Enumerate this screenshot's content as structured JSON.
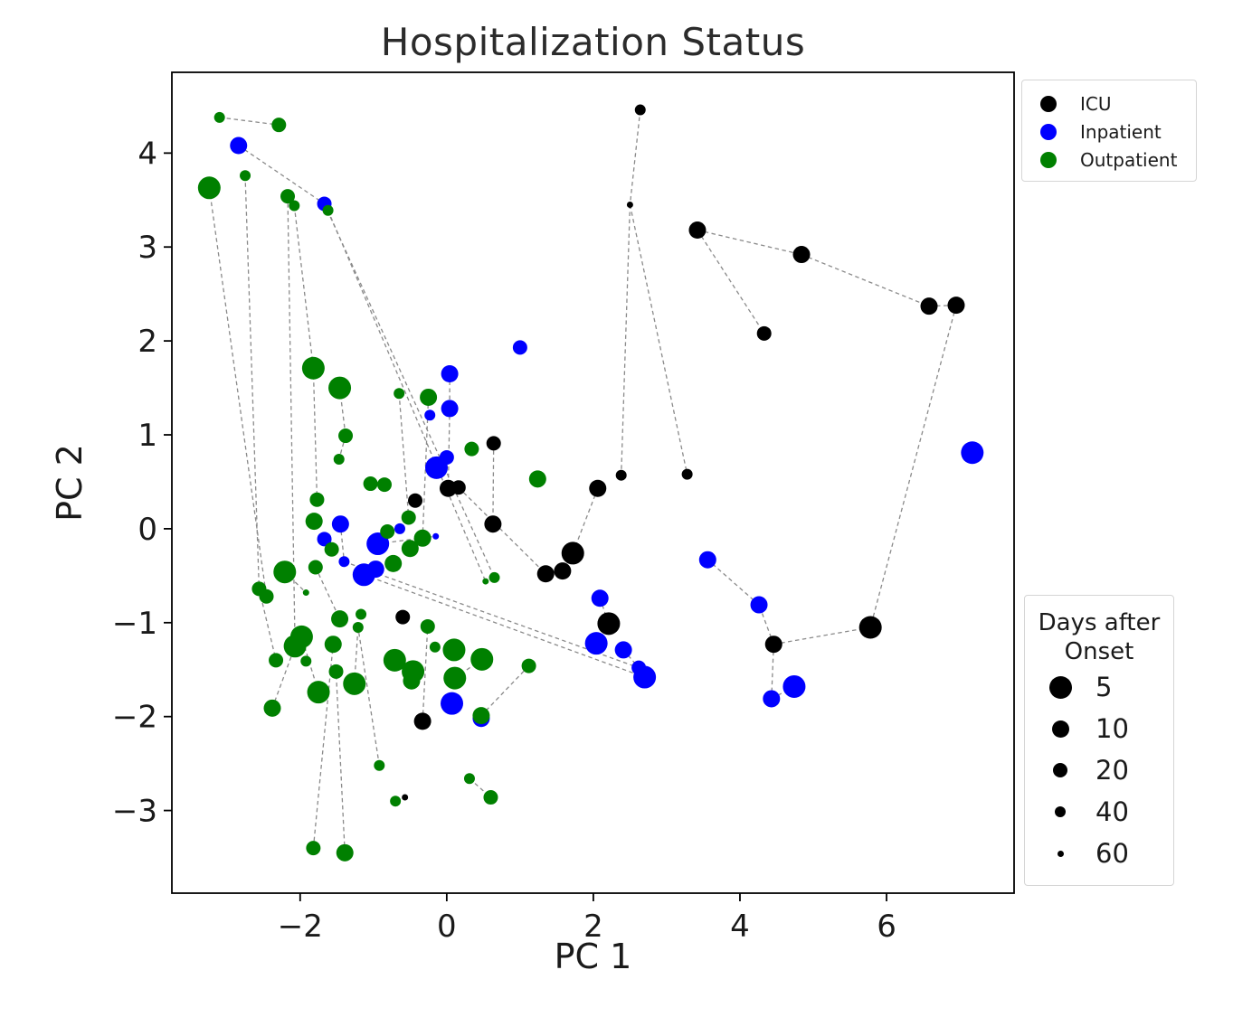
{
  "title": "Hospitalization Status",
  "axes": {
    "xlabel": "PC 1",
    "ylabel": "PC 2",
    "xticks": [
      -2,
      0,
      2,
      4,
      6
    ],
    "yticks": [
      4,
      3,
      2,
      1,
      0,
      -1,
      -2,
      -3
    ]
  },
  "legend": {
    "items": [
      {
        "label": "ICU",
        "color": "#000000"
      },
      {
        "label": "Inpatient",
        "color": "#0000ff"
      },
      {
        "label": "Outpatient",
        "color": "#008000"
      }
    ]
  },
  "size_legend": {
    "title_line1": "Days after",
    "title_line2": "Onset",
    "entries": [
      {
        "label": "5",
        "days": 5
      },
      {
        "label": "10",
        "days": 10
      },
      {
        "label": "20",
        "days": 20
      },
      {
        "label": "40",
        "days": 40
      },
      {
        "label": "60",
        "days": 60
      }
    ]
  },
  "chart_data": {
    "type": "scatter",
    "title": "Hospitalization Status",
    "xlabel": "PC 1",
    "ylabel": "PC 2",
    "xlim": [
      -3.75,
      7.74
    ],
    "ylim": [
      -3.88,
      4.86
    ],
    "grid": false,
    "legend_position": "upper right (outside-style box)",
    "size_encoding": "Days after Onset: larger marker = fewer days (5,10,20,40,60)",
    "series": [
      {
        "name": "ICU",
        "color": "#000000",
        "points": [
          [
            2.64,
            4.46,
            40
          ],
          [
            2.5,
            3.45,
            60
          ],
          [
            3.42,
            3.18,
            10
          ],
          [
            4.84,
            2.92,
            10
          ],
          [
            4.33,
            2.08,
            20
          ],
          [
            6.58,
            2.37,
            10
          ],
          [
            6.95,
            2.38,
            10
          ],
          [
            0.64,
            0.91,
            20
          ],
          [
            2.06,
            0.43,
            10
          ],
          [
            2.38,
            0.57,
            40
          ],
          [
            3.28,
            0.58,
            40
          ],
          [
            0.02,
            0.43,
            10
          ],
          [
            0.16,
            0.44,
            20
          ],
          [
            -0.43,
            0.3,
            20
          ],
          [
            0.63,
            0.05,
            10
          ],
          [
            1.72,
            -0.26,
            5
          ],
          [
            1.58,
            -0.45,
            10
          ],
          [
            1.35,
            -0.48,
            10
          ],
          [
            2.21,
            -1.01,
            5
          ],
          [
            -0.6,
            -0.94,
            20
          ],
          [
            -0.33,
            -2.05,
            10
          ],
          [
            -0.57,
            -2.86,
            60
          ],
          [
            4.46,
            -1.23,
            10
          ],
          [
            5.78,
            -1.05,
            5
          ]
        ]
      },
      {
        "name": "Inpatient",
        "color": "#0000ff",
        "points": [
          [
            -2.84,
            4.08,
            10
          ],
          [
            -1.67,
            3.46,
            20
          ],
          [
            1.0,
            1.93,
            20
          ],
          [
            0.04,
            1.65,
            10
          ],
          [
            0.04,
            1.28,
            10
          ],
          [
            -0.23,
            1.21,
            40
          ],
          [
            0.0,
            0.76,
            20
          ],
          [
            -0.14,
            0.65,
            5
          ],
          [
            -1.45,
            0.05,
            10
          ],
          [
            -1.67,
            -0.11,
            20
          ],
          [
            -0.64,
            0.0,
            40
          ],
          [
            -0.15,
            -0.08,
            60
          ],
          [
            -0.94,
            -0.16,
            5
          ],
          [
            -1.4,
            -0.35,
            40
          ],
          [
            -1.13,
            -0.49,
            5
          ],
          [
            -0.97,
            -0.43,
            10
          ],
          [
            2.09,
            -0.74,
            10
          ],
          [
            2.04,
            -1.22,
            5
          ],
          [
            2.41,
            -1.29,
            10
          ],
          [
            2.62,
            -1.48,
            20
          ],
          [
            2.7,
            -1.58,
            5
          ],
          [
            0.07,
            -1.86,
            5
          ],
          [
            0.47,
            -2.02,
            10
          ],
          [
            3.56,
            -0.33,
            10
          ],
          [
            4.26,
            -0.81,
            10
          ],
          [
            4.43,
            -1.81,
            10
          ],
          [
            4.74,
            -1.68,
            5
          ],
          [
            7.17,
            0.81,
            5
          ]
        ]
      },
      {
        "name": "Outpatient",
        "color": "#008000",
        "points": [
          [
            -3.1,
            4.38,
            40
          ],
          [
            -2.29,
            4.3,
            20
          ],
          [
            -2.75,
            3.76,
            40
          ],
          [
            -3.24,
            3.63,
            5
          ],
          [
            -2.17,
            3.54,
            20
          ],
          [
            -2.08,
            3.44,
            40
          ],
          [
            -1.62,
            3.39,
            40
          ],
          [
            -1.82,
            1.71,
            5
          ],
          [
            -1.46,
            1.5,
            5
          ],
          [
            -0.65,
            1.44,
            40
          ],
          [
            -0.25,
            1.4,
            10
          ],
          [
            0.34,
            0.85,
            20
          ],
          [
            1.24,
            0.53,
            10
          ],
          [
            -1.38,
            0.99,
            20
          ],
          [
            -1.47,
            0.74,
            40
          ],
          [
            -1.04,
            0.48,
            20
          ],
          [
            -0.85,
            0.47,
            20
          ],
          [
            -1.77,
            0.31,
            20
          ],
          [
            -1.81,
            0.08,
            10
          ],
          [
            -0.52,
            0.12,
            20
          ],
          [
            -0.81,
            -0.03,
            20
          ],
          [
            -0.33,
            -0.1,
            10
          ],
          [
            -0.5,
            -0.21,
            10
          ],
          [
            -0.73,
            -0.37,
            10
          ],
          [
            -1.57,
            -0.22,
            20
          ],
          [
            -1.79,
            -0.41,
            20
          ],
          [
            -2.21,
            -0.46,
            5
          ],
          [
            -2.56,
            -0.64,
            20
          ],
          [
            -2.46,
            -0.72,
            20
          ],
          [
            -1.92,
            -0.68,
            60
          ],
          [
            -1.46,
            -0.96,
            10
          ],
          [
            -1.17,
            -0.91,
            40
          ],
          [
            -1.21,
            -1.05,
            40
          ],
          [
            -2.07,
            -1.25,
            5
          ],
          [
            -1.98,
            -1.15,
            5
          ],
          [
            -1.55,
            -1.23,
            10
          ],
          [
            -1.51,
            -1.52,
            20
          ],
          [
            -2.33,
            -1.4,
            20
          ],
          [
            -1.92,
            -1.41,
            40
          ],
          [
            -1.26,
            -1.65,
            5
          ],
          [
            -1.75,
            -1.74,
            5
          ],
          [
            -2.38,
            -1.91,
            10
          ],
          [
            -0.71,
            -1.4,
            5
          ],
          [
            -0.46,
            -1.52,
            5
          ],
          [
            -0.48,
            -1.62,
            10
          ],
          [
            -0.26,
            -1.04,
            20
          ],
          [
            -0.16,
            -1.26,
            40
          ],
          [
            0.1,
            -1.29,
            5
          ],
          [
            0.48,
            -1.39,
            5
          ],
          [
            1.12,
            -1.46,
            20
          ],
          [
            0.11,
            -1.59,
            5
          ],
          [
            0.47,
            -1.99,
            10
          ],
          [
            0.53,
            -0.56,
            60
          ],
          [
            0.65,
            -0.52,
            40
          ],
          [
            0.31,
            -2.66,
            40
          ],
          [
            0.6,
            -2.86,
            20
          ],
          [
            -0.7,
            -2.9,
            40
          ],
          [
            -1.82,
            -3.4,
            20
          ],
          [
            -1.39,
            -3.45,
            10
          ],
          [
            -0.92,
            -2.52,
            40
          ]
        ]
      }
    ],
    "trajectories": [
      [
        -3.1,
        4.38,
        -2.29,
        4.3
      ],
      [
        -2.84,
        4.08,
        -1.67,
        3.46
      ],
      [
        -3.24,
        3.63,
        -2.46,
        -0.72
      ],
      [
        -2.75,
        3.76,
        -2.56,
        -0.64
      ],
      [
        -2.17,
        3.54,
        -2.07,
        -1.25
      ],
      [
        -2.08,
        3.44,
        -1.82,
        1.71
      ],
      [
        -1.82,
        1.71,
        -1.77,
        0.31
      ],
      [
        -1.62,
        3.39,
        0.53,
        -0.56
      ],
      [
        -1.67,
        3.46,
        0.65,
        -0.52
      ],
      [
        2.64,
        4.46,
        2.5,
        3.45
      ],
      [
        2.5,
        3.45,
        2.38,
        0.57
      ],
      [
        2.5,
        3.45,
        3.28,
        0.58
      ],
      [
        3.42,
        3.18,
        4.84,
        2.92
      ],
      [
        3.42,
        3.18,
        4.33,
        2.08
      ],
      [
        4.84,
        2.92,
        6.58,
        2.37
      ],
      [
        6.58,
        2.37,
        6.95,
        2.38
      ],
      [
        6.95,
        2.38,
        5.78,
        -1.05
      ],
      [
        5.78,
        -1.05,
        4.46,
        -1.23
      ],
      [
        4.46,
        -1.23,
        4.26,
        -0.81
      ],
      [
        4.26,
        -0.81,
        3.56,
        -0.33
      ],
      [
        4.46,
        -1.23,
        4.43,
        -1.81
      ],
      [
        4.43,
        -1.81,
        4.74,
        -1.68
      ],
      [
        0.64,
        0.91,
        0.63,
        0.05
      ],
      [
        0.04,
        1.65,
        0.04,
        1.28
      ],
      [
        0.04,
        1.28,
        0.02,
        0.43
      ],
      [
        -0.65,
        1.44,
        -0.52,
        0.12
      ],
      [
        -0.25,
        1.4,
        -0.33,
        -0.1
      ],
      [
        0.16,
        0.44,
        1.35,
        -0.48
      ],
      [
        2.06,
        0.43,
        1.72,
        -0.26
      ],
      [
        1.72,
        -0.26,
        1.58,
        -0.45
      ],
      [
        2.09,
        -0.74,
        2.21,
        -1.01
      ],
      [
        2.21,
        -1.01,
        2.04,
        -1.22
      ],
      [
        2.41,
        -1.29,
        2.62,
        -1.48
      ],
      [
        -1.4,
        -0.35,
        2.62,
        -1.48
      ],
      [
        -1.13,
        -0.49,
        2.7,
        -1.58
      ],
      [
        1.12,
        -1.46,
        0.47,
        -1.99
      ],
      [
        0.11,
        -1.59,
        0.07,
        -1.86
      ],
      [
        -0.33,
        -2.05,
        -0.26,
        -1.04
      ],
      [
        0.31,
        -2.66,
        0.6,
        -2.86
      ],
      [
        -1.82,
        -3.4,
        -1.55,
        -1.23
      ],
      [
        -1.39,
        -3.45,
        -1.51,
        -1.52
      ],
      [
        -0.7,
        -2.9,
        -0.57,
        -2.86
      ],
      [
        -0.92,
        -2.52,
        -1.21,
        -1.05
      ],
      [
        -2.56,
        -0.64,
        -2.33,
        -1.4
      ],
      [
        -2.21,
        -0.46,
        -1.92,
        -0.68
      ],
      [
        -1.79,
        -0.41,
        -1.46,
        -0.96
      ],
      [
        -2.38,
        -1.91,
        -2.07,
        -1.25
      ],
      [
        -1.26,
        -1.65,
        -1.21,
        -1.05
      ],
      [
        -1.75,
        -1.74,
        -1.98,
        -1.15
      ],
      [
        -1.45,
        0.05,
        -1.4,
        -0.35
      ],
      [
        -1.04,
        0.48,
        -0.85,
        0.47
      ],
      [
        -0.94,
        -0.16,
        -0.15,
        -0.08
      ],
      [
        0.1,
        -1.29,
        -0.16,
        -1.26
      ],
      [
        0.48,
        -1.39,
        0.11,
        -1.59
      ],
      [
        -1.67,
        -0.11,
        -1.57,
        -0.22
      ],
      [
        -1.38,
        0.99,
        -1.47,
        0.74
      ],
      [
        -1.46,
        1.5,
        -1.38,
        0.99
      ]
    ]
  }
}
